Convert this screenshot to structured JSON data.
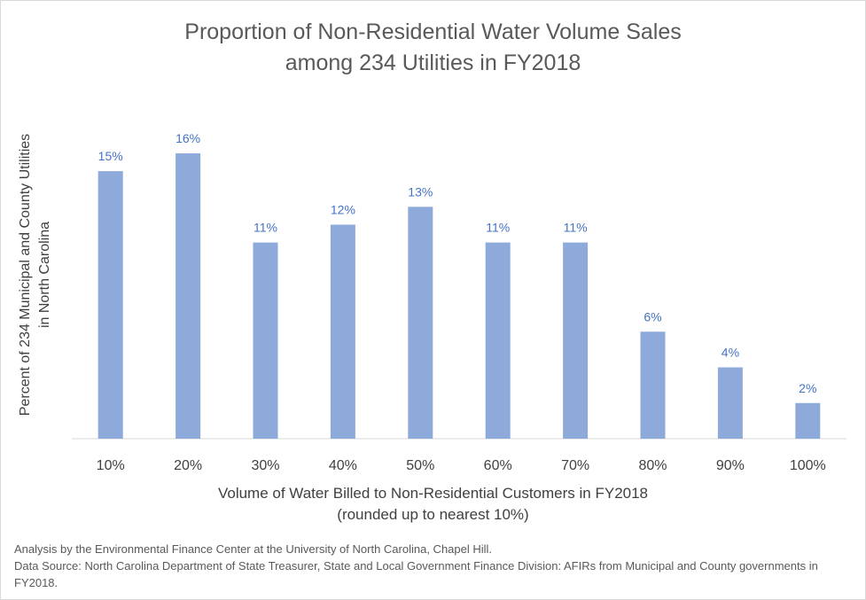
{
  "chart_data": {
    "type": "bar",
    "title_lines": [
      "Proportion of Non-Residential Water Volume Sales",
      "among 234 Utilities in FY2018"
    ],
    "xlabel_lines": [
      "Volume of Water Billed to Non-Residential Customers in FY2018",
      "(rounded up to nearest 10%)"
    ],
    "ylabel_lines": [
      "Percent of 234 Municipal and County Utilities",
      "in North Carolina"
    ],
    "categories": [
      "10%",
      "20%",
      "30%",
      "40%",
      "50%",
      "60%",
      "70%",
      "80%",
      "90%",
      "100%"
    ],
    "values": [
      15,
      16,
      11,
      12,
      13,
      11,
      11,
      6,
      4,
      2
    ],
    "data_labels": [
      "15%",
      "16%",
      "11%",
      "12%",
      "13%",
      "11%",
      "11%",
      "6%",
      "4%",
      "2%"
    ],
    "ylim": [
      0,
      16
    ],
    "grid": false,
    "bar_color": "#8eaadb",
    "label_color": "#4472c4"
  },
  "notes": [
    "Analysis by the Environmental Finance Center at the University of North Carolina, Chapel Hill.",
    "Data Source: North Carolina Department of State Treasurer, State and Local Government Finance Division: AFIRs from Municipal and County governments in FY2018."
  ]
}
